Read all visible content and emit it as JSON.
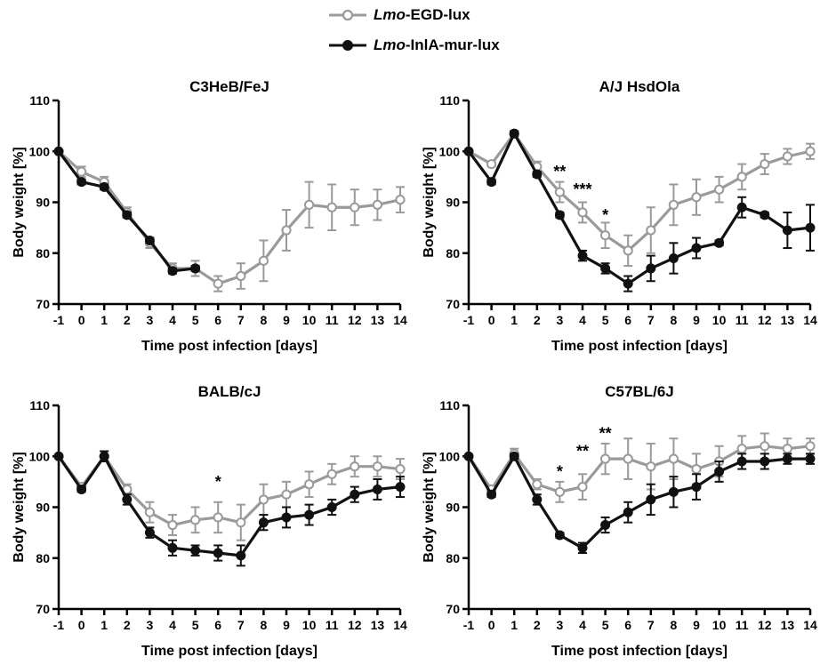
{
  "legend": {
    "items": [
      {
        "italic": "Lmo",
        "rest": "-EGD-lux",
        "color": "#9a9a9a",
        "marker": "open"
      },
      {
        "italic": "Lmo",
        "rest": "-InlA-mur-lux",
        "color": "#111111",
        "marker": "filled"
      }
    ]
  },
  "colors": {
    "egd": "#9a9a9a",
    "inla": "#111111"
  },
  "chart_data": [
    {
      "type": "line",
      "title": "C3HeB/FeJ",
      "xlabel": "Time post infection [days]",
      "ylabel": "Body weight [%]",
      "x": [
        -1,
        0,
        1,
        2,
        3,
        4,
        5,
        6,
        7,
        8,
        9,
        10,
        11,
        12,
        13,
        14
      ],
      "ylim": [
        70,
        110
      ],
      "yticks": [
        70,
        80,
        90,
        100,
        110
      ],
      "series": [
        {
          "name": "Lmo-EGD-lux",
          "values": [
            100,
            96,
            94,
            88,
            82,
            77,
            77,
            74,
            75.5,
            78.5,
            84.5,
            89.5,
            89,
            89,
            89.5,
            90.5
          ],
          "errors": [
            0,
            1,
            1,
            1,
            1,
            1,
            1.5,
            1.5,
            2.5,
            4,
            4,
            4.5,
            4.5,
            3.5,
            3,
            2.5
          ]
        },
        {
          "name": "Lmo-InlA-mur-lux",
          "values": [
            100,
            94,
            93,
            87.5,
            82.5,
            76.5,
            77,
            null,
            null,
            null,
            null,
            null,
            null,
            null,
            null,
            null
          ],
          "errors": [
            0,
            0.5,
            0.5,
            0.5,
            0.5,
            0.5,
            0.5,
            null,
            null,
            null,
            null,
            null,
            null,
            null,
            null,
            null
          ]
        }
      ],
      "annotations": []
    },
    {
      "type": "line",
      "title": "A/J HsdOla",
      "xlabel": "Time post infection [days]",
      "ylabel": "Body weight [%]",
      "x": [
        -1,
        0,
        1,
        2,
        3,
        4,
        5,
        6,
        7,
        8,
        9,
        10,
        11,
        12,
        13,
        14
      ],
      "ylim": [
        70,
        110
      ],
      "yticks": [
        70,
        80,
        90,
        100,
        110
      ],
      "series": [
        {
          "name": "Lmo-EGD-lux",
          "values": [
            100,
            97.5,
            103.5,
            97,
            92,
            88,
            83.5,
            80.5,
            84.5,
            89.5,
            91,
            92.5,
            95,
            97.5,
            99,
            100
          ],
          "errors": [
            0,
            0.5,
            0.5,
            1,
            2,
            2,
            2.5,
            3,
            4.5,
            4,
            3.5,
            2.5,
            2.5,
            2,
            1.5,
            1.5
          ]
        },
        {
          "name": "Lmo-InlA-mur-lux",
          "values": [
            100,
            94,
            103.5,
            95.5,
            87.5,
            79.5,
            77,
            74,
            77,
            79,
            81,
            82,
            89,
            87.5,
            84.5,
            85
          ],
          "errors": [
            0,
            0.5,
            0.5,
            0.5,
            0.5,
            1,
            1,
            1.5,
            2.5,
            3,
            2,
            0.5,
            2,
            0.5,
            3.5,
            4.5
          ]
        }
      ],
      "annotations": [
        {
          "x": 3,
          "label": "**",
          "y": 96
        },
        {
          "x": 4,
          "label": "***",
          "y": 92.5
        },
        {
          "x": 5,
          "label": "*",
          "y": 87.5
        }
      ]
    },
    {
      "type": "line",
      "title": "BALB/cJ",
      "xlabel": "Time post infection [days]",
      "ylabel": "Body weight [%]",
      "x": [
        -1,
        0,
        1,
        2,
        3,
        4,
        5,
        6,
        7,
        8,
        9,
        10,
        11,
        12,
        13,
        14
      ],
      "ylim": [
        70,
        110
      ],
      "yticks": [
        70,
        80,
        90,
        100,
        110
      ],
      "series": [
        {
          "name": "Lmo-EGD-lux",
          "values": [
            100,
            94,
            100,
            93.5,
            89,
            86.5,
            87.5,
            88,
            87,
            91.5,
            92.5,
            94.5,
            96.5,
            98,
            98,
            97.5
          ],
          "errors": [
            0,
            0.5,
            1,
            1,
            2,
            2,
            2.5,
            3,
            3.5,
            3,
            2.5,
            2.5,
            2,
            2,
            2,
            2
          ]
        },
        {
          "name": "Lmo-InlA-mur-lux",
          "values": [
            100,
            93.5,
            100,
            91.5,
            85,
            82,
            81.5,
            81,
            80.5,
            87,
            88,
            88.5,
            90,
            92.5,
            93.5,
            94
          ],
          "errors": [
            0,
            0.5,
            1,
            1,
            1,
            1.5,
            1,
            1.5,
            2,
            1.5,
            2,
            2,
            1.5,
            1.5,
            2,
            2
          ]
        }
      ],
      "annotations": [
        {
          "x": 6,
          "label": "*",
          "y": 95
        }
      ]
    },
    {
      "type": "line",
      "title": "C57BL/6J",
      "xlabel": "Time post infection [days]",
      "ylabel": "Body weight [%]",
      "x": [
        -1,
        0,
        1,
        2,
        3,
        4,
        5,
        6,
        7,
        8,
        9,
        10,
        11,
        12,
        13,
        14
      ],
      "ylim": [
        70,
        110
      ],
      "yticks": [
        70,
        80,
        90,
        100,
        110
      ],
      "series": [
        {
          "name": "Lmo-EGD-lux",
          "values": [
            100,
            93.5,
            100.5,
            94.5,
            93,
            94,
            99.5,
            99.5,
            98,
            99.5,
            97.5,
            99,
            101.5,
            102,
            101.5,
            102
          ],
          "errors": [
            0,
            0.5,
            1,
            1,
            2,
            2.5,
            3,
            4,
            4.5,
            4,
            3,
            3,
            2.5,
            2.5,
            2,
            1.5
          ]
        },
        {
          "name": "Lmo-InlA-mur-lux",
          "values": [
            100,
            92.5,
            100,
            91.5,
            84.5,
            82,
            86.5,
            89,
            91.5,
            93,
            94,
            97,
            99,
            99,
            99.5,
            99.5
          ],
          "errors": [
            0,
            0.5,
            0.5,
            1,
            0.5,
            1,
            1.5,
            2,
            3,
            3,
            2.5,
            2,
            1.5,
            1.5,
            1,
            1
          ]
        }
      ],
      "annotations": [
        {
          "x": 3,
          "label": "*",
          "y": 97
        },
        {
          "x": 4,
          "label": "**",
          "y": 101
        },
        {
          "x": 5,
          "label": "**",
          "y": 104.5
        }
      ]
    }
  ]
}
